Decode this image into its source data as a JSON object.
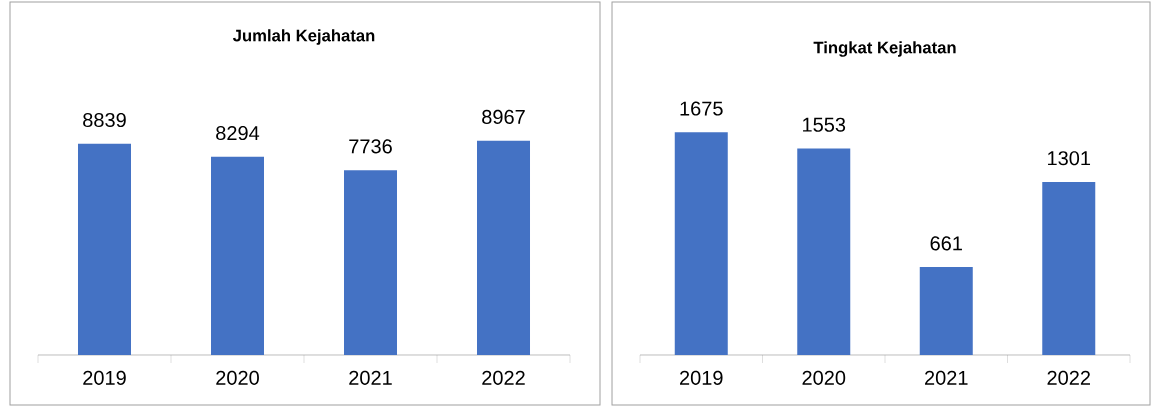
{
  "chart_data": [
    {
      "type": "bar",
      "title": "Jumlah Kejahatan",
      "categories": [
        "2019",
        "2020",
        "2021",
        "2022"
      ],
      "values": [
        8839,
        8294,
        7736,
        8967
      ],
      "color": "#4472c4",
      "data_labels": true,
      "tick_labels": "x"
    },
    {
      "type": "bar",
      "title": "Tingkat Kejahatan",
      "categories": [
        "2019",
        "2020",
        "2021",
        "2022"
      ],
      "values": [
        1675,
        1553,
        661,
        1301
      ],
      "color": "#4472c4",
      "data_labels": true,
      "tick_labels": "x"
    }
  ]
}
